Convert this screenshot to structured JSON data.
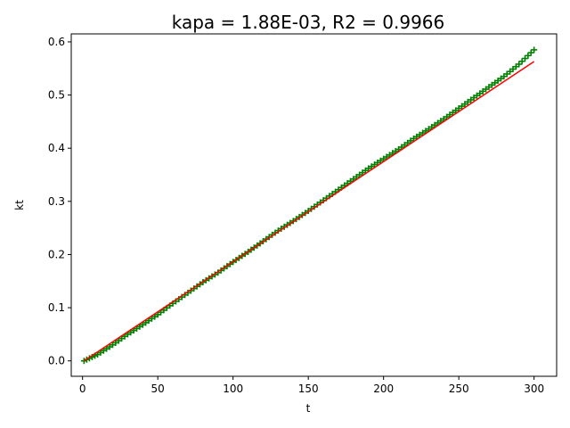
{
  "chart_data": {
    "type": "scatter",
    "title": "kapa = 1.88E-03, R2 = 0.9966",
    "xlabel": "t",
    "ylabel": "kt",
    "xlim": [
      -7.5,
      315
    ],
    "ylim": [
      -0.029,
      0.615
    ],
    "xticks": [
      0,
      50,
      100,
      150,
      200,
      250,
      300
    ],
    "xtick_labels": [
      "0",
      "50",
      "100",
      "150",
      "200",
      "250",
      "300"
    ],
    "yticks": [
      0.0,
      0.1,
      0.2,
      0.3,
      0.4,
      0.5,
      0.6
    ],
    "ytick_labels": [
      "0.0",
      "0.1",
      "0.2",
      "0.3",
      "0.4",
      "0.5",
      "0.6"
    ],
    "grid": false,
    "legend": "none",
    "series": [
      {
        "kind": "scatter",
        "marker": "+",
        "color": "#008000",
        "x": [
          1,
          10,
          20,
          30,
          40,
          50,
          60,
          70,
          80,
          90,
          100,
          110,
          120,
          130,
          140,
          150,
          160,
          170,
          180,
          190,
          200,
          210,
          220,
          230,
          240,
          250,
          260,
          270,
          280,
          290,
          300
        ],
        "y": [
          0.0,
          0.012,
          0.03,
          0.05,
          0.068,
          0.087,
          0.108,
          0.128,
          0.148,
          0.166,
          0.186,
          0.205,
          0.225,
          0.245,
          0.263,
          0.282,
          0.302,
          0.322,
          0.342,
          0.362,
          0.38,
          0.398,
          0.418,
          0.436,
          0.455,
          0.475,
          0.495,
          0.515,
          0.535,
          0.558,
          0.585
        ]
      },
      {
        "kind": "line",
        "color": "#ff0000",
        "x": [
          1,
          300
        ],
        "y": [
          0.0,
          0.563
        ]
      }
    ]
  }
}
